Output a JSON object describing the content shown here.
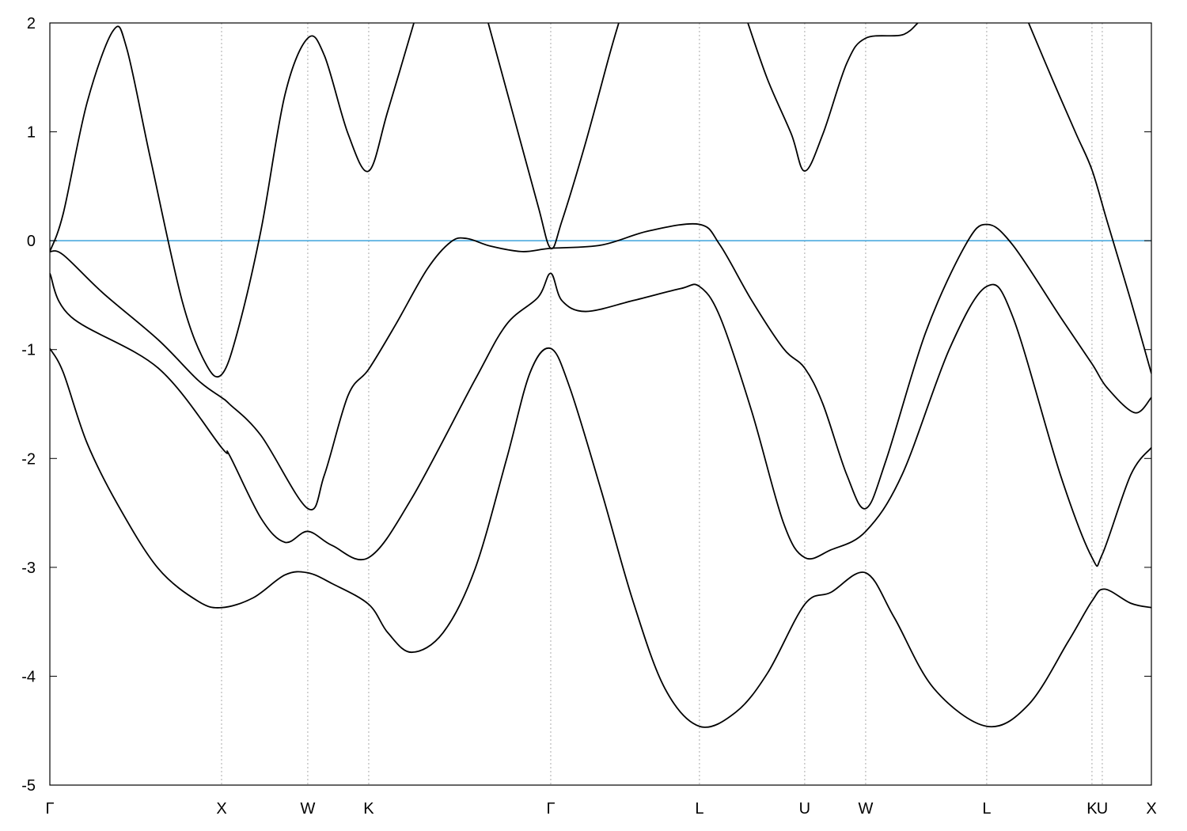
{
  "chart_data": {
    "type": "line",
    "title": "",
    "xlabel": "",
    "ylabel": "",
    "ylim": [
      -5,
      2
    ],
    "xlim": [
      0,
      6.415
    ],
    "yticks": [
      -5,
      -4,
      -3,
      -2,
      -1,
      0,
      1,
      2
    ],
    "ytick_labels": [
      "-5",
      "-4",
      "-3",
      "-2",
      "-1",
      "0",
      "1",
      "2"
    ],
    "xticks": [
      {
        "k": 0,
        "label": "Γ"
      },
      {
        "k": 1.0,
        "label": "X"
      },
      {
        "k": 1.502,
        "label": "W"
      },
      {
        "k": 1.857,
        "label": "K"
      },
      {
        "k": 2.917,
        "label": "Γ"
      },
      {
        "k": 3.783,
        "label": "L"
      },
      {
        "k": 4.396,
        "label": "U"
      },
      {
        "k": 4.751,
        "label": "W"
      },
      {
        "k": 5.456,
        "label": "L"
      },
      {
        "k": 6.069,
        "label": "K"
      },
      {
        "k": 6.129,
        "label": "U"
      },
      {
        "k": 6.415,
        "label": "X"
      }
    ],
    "grid": "vertical dotted lines at high-symmetry points",
    "fermi_level": {
      "value": 0,
      "color": "#3ea3dc"
    },
    "band_color": "#000000",
    "series": [
      {
        "points": [
          [
            0,
            -0.99
          ],
          [
            0.078,
            -1.21
          ],
          [
            0.217,
            -1.86
          ],
          [
            0.401,
            -2.44
          ],
          [
            0.631,
            -3.01
          ],
          [
            0.862,
            -3.31
          ],
          [
            1.0,
            -3.37
          ],
          [
            1.184,
            -3.28
          ],
          [
            1.369,
            -3.07
          ],
          [
            1.502,
            -3.05
          ],
          [
            1.645,
            -3.15
          ],
          [
            1.857,
            -3.34
          ],
          [
            1.968,
            -3.6
          ],
          [
            2.106,
            -3.78
          ],
          [
            2.29,
            -3.6
          ],
          [
            2.475,
            -3.02
          ],
          [
            2.659,
            -2.01
          ],
          [
            2.797,
            -1.21
          ],
          [
            2.917,
            -0.99
          ],
          [
            3.028,
            -1.35
          ],
          [
            3.212,
            -2.3
          ],
          [
            3.396,
            -3.31
          ],
          [
            3.581,
            -4.11
          ],
          [
            3.783,
            -4.46
          ],
          [
            3.995,
            -4.33
          ],
          [
            4.18,
            -3.97
          ],
          [
            4.396,
            -3.34
          ],
          [
            4.548,
            -3.23
          ],
          [
            4.751,
            -3.05
          ],
          [
            4.917,
            -3.46
          ],
          [
            5.147,
            -4.11
          ],
          [
            5.456,
            -4.46
          ],
          [
            5.7,
            -4.26
          ],
          [
            5.931,
            -3.68
          ],
          [
            6.069,
            -3.31
          ],
          [
            6.143,
            -3.2
          ],
          [
            6.295,
            -3.33
          ],
          [
            6.415,
            -3.37
          ]
        ]
      },
      {
        "points": [
          [
            0,
            -0.3
          ],
          [
            0.124,
            -0.7
          ],
          [
            0.631,
            -1.17
          ],
          [
            1.0,
            -1.9
          ],
          [
            1.046,
            -1.97
          ],
          [
            1.23,
            -2.55
          ],
          [
            1.369,
            -2.77
          ],
          [
            1.502,
            -2.67
          ],
          [
            1.645,
            -2.8
          ],
          [
            1.857,
            -2.91
          ],
          [
            2.106,
            -2.37
          ],
          [
            2.475,
            -1.28
          ],
          [
            2.659,
            -0.77
          ],
          [
            2.843,
            -0.52
          ],
          [
            2.917,
            -0.3
          ],
          [
            2.982,
            -0.55
          ],
          [
            3.12,
            -0.65
          ],
          [
            3.396,
            -0.55
          ],
          [
            3.673,
            -0.44
          ],
          [
            3.783,
            -0.42
          ],
          [
            3.903,
            -0.7
          ],
          [
            4.088,
            -1.57
          ],
          [
            4.272,
            -2.59
          ],
          [
            4.396,
            -2.91
          ],
          [
            4.548,
            -2.84
          ],
          [
            4.751,
            -2.67
          ],
          [
            4.963,
            -2.15
          ],
          [
            5.24,
            -0.99
          ],
          [
            5.456,
            -0.42
          ],
          [
            5.608,
            -0.7
          ],
          [
            5.885,
            -2.15
          ],
          [
            6.069,
            -2.91
          ],
          [
            6.129,
            -2.88
          ],
          [
            6.295,
            -2.15
          ],
          [
            6.415,
            -1.9
          ]
        ]
      },
      {
        "points": [
          [
            0,
            -0.1
          ],
          [
            0.078,
            -0.13
          ],
          [
            0.309,
            -0.48
          ],
          [
            0.631,
            -0.91
          ],
          [
            0.862,
            -1.28
          ],
          [
            1.0,
            -1.44
          ],
          [
            1.046,
            -1.5
          ],
          [
            1.23,
            -1.79
          ],
          [
            1.502,
            -2.46
          ],
          [
            1.599,
            -2.15
          ],
          [
            1.737,
            -1.42
          ],
          [
            1.857,
            -1.18
          ],
          [
            2.014,
            -0.77
          ],
          [
            2.198,
            -0.26
          ],
          [
            2.336,
            -0.01
          ],
          [
            2.429,
            0.02
          ],
          [
            2.567,
            -0.05
          ],
          [
            2.751,
            -0.1
          ],
          [
            2.917,
            -0.07
          ],
          [
            3.212,
            -0.04
          ],
          [
            3.488,
            0.09
          ],
          [
            3.783,
            0.15
          ],
          [
            3.903,
            -0.04
          ],
          [
            4.088,
            -0.55
          ],
          [
            4.272,
            -0.99
          ],
          [
            4.396,
            -1.17
          ],
          [
            4.502,
            -1.5
          ],
          [
            4.641,
            -2.15
          ],
          [
            4.751,
            -2.46
          ],
          [
            4.871,
            -2.01
          ],
          [
            5.101,
            -0.84
          ],
          [
            5.332,
            -0.04
          ],
          [
            5.456,
            0.15
          ],
          [
            5.608,
            -0.04
          ],
          [
            5.885,
            -0.7
          ],
          [
            6.069,
            -1.13
          ],
          [
            6.157,
            -1.35
          ],
          [
            6.318,
            -1.58
          ],
          [
            6.415,
            -1.44
          ]
        ]
      },
      {
        "points": [
          [
            0,
            -0.1
          ],
          [
            0.078,
            0.25
          ],
          [
            0.217,
            1.27
          ],
          [
            0.369,
            1.93
          ],
          [
            0.447,
            1.77
          ],
          [
            0.585,
            0.76
          ],
          [
            0.77,
            -0.55
          ],
          [
            0.908,
            -1.13
          ],
          [
            1.0,
            -1.23
          ],
          [
            1.092,
            -0.84
          ],
          [
            1.23,
            0.1
          ],
          [
            1.369,
            1.34
          ],
          [
            1.502,
            1.86
          ],
          [
            1.599,
            1.7
          ],
          [
            1.737,
            0.98
          ],
          [
            1.857,
            0.64
          ],
          [
            1.968,
            1.19
          ],
          [
            2.12,
            2.0
          ]
        ]
      },
      {
        "points": [
          [
            2.553,
            2.0
          ],
          [
            2.705,
            1.12
          ],
          [
            2.843,
            0.32
          ],
          [
            2.917,
            -0.07
          ],
          [
            2.982,
            0.18
          ],
          [
            3.12,
            0.9
          ],
          [
            3.258,
            1.7
          ],
          [
            3.313,
            2.0
          ]
        ]
      },
      {
        "points": [
          [
            4.065,
            2.0
          ],
          [
            4.18,
            1.48
          ],
          [
            4.318,
            0.98
          ],
          [
            4.396,
            0.64
          ],
          [
            4.502,
            0.98
          ],
          [
            4.641,
            1.63
          ],
          [
            4.751,
            1.86
          ],
          [
            4.963,
            1.89
          ],
          [
            5.055,
            2.0
          ]
        ]
      },
      {
        "points": [
          [
            5.7,
            2.0
          ],
          [
            5.839,
            1.48
          ],
          [
            5.977,
            0.98
          ],
          [
            6.069,
            0.65
          ],
          [
            6.157,
            0.18
          ],
          [
            6.295,
            -0.55
          ],
          [
            6.415,
            -1.22
          ]
        ]
      }
    ]
  }
}
